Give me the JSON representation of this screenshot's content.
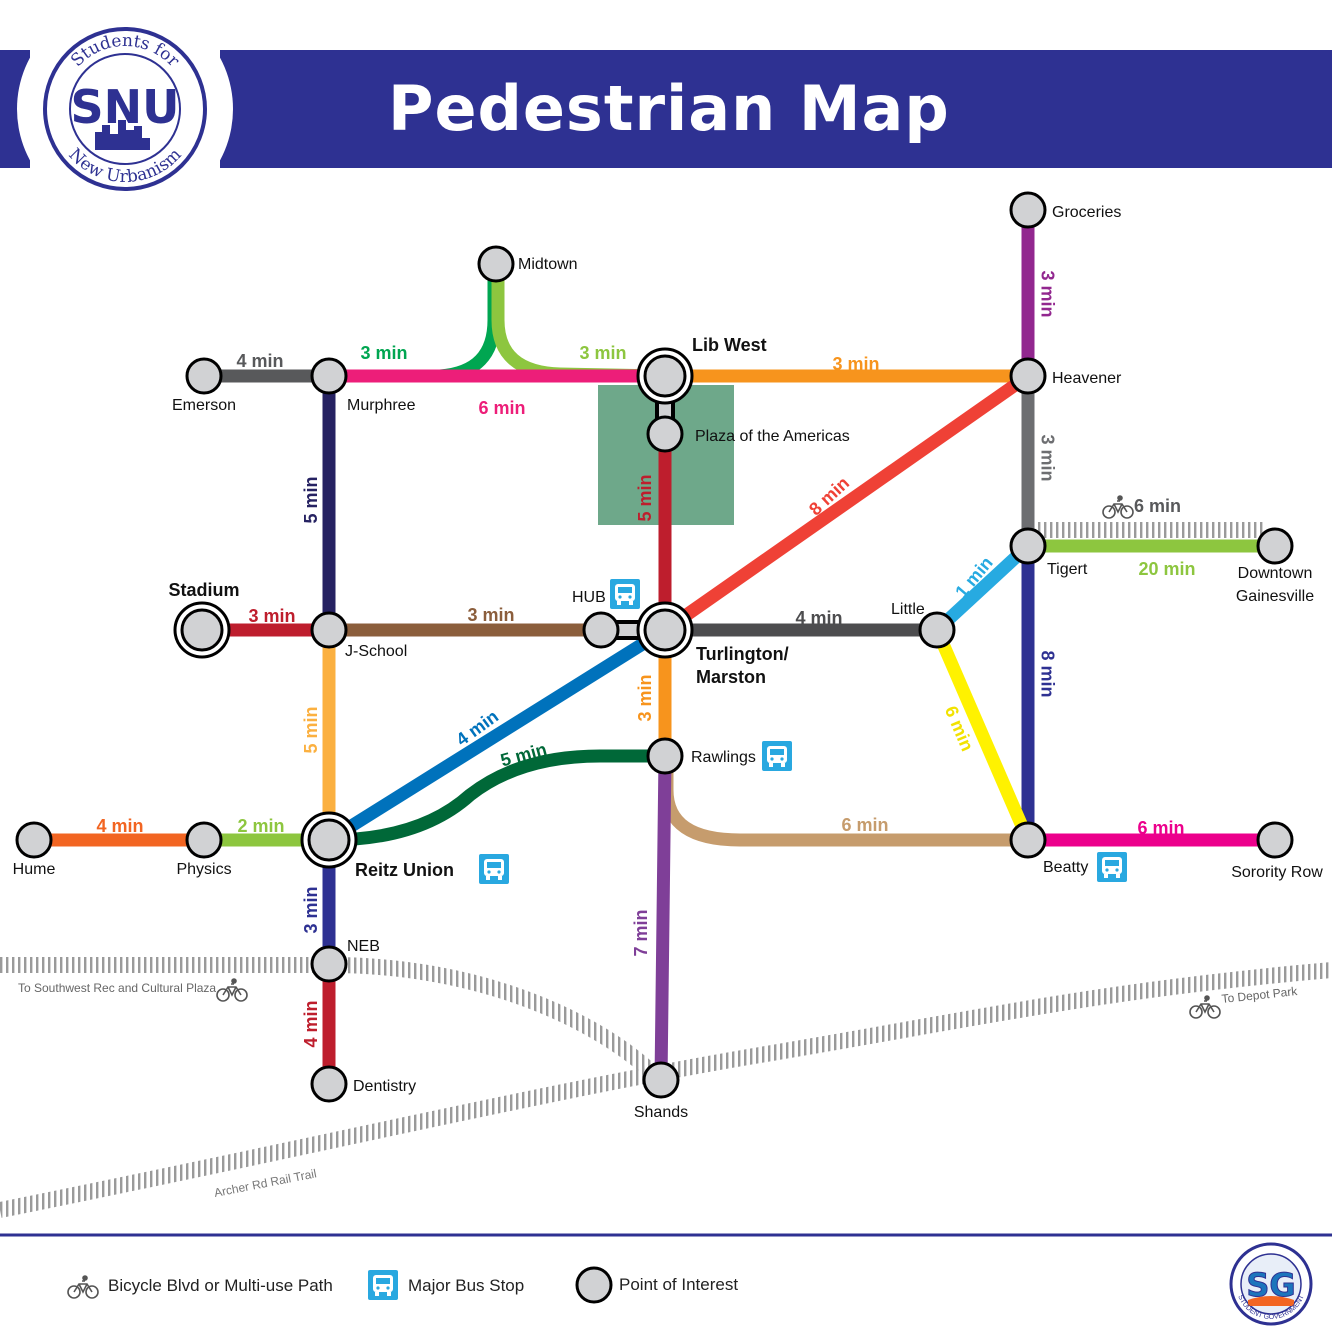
{
  "header": {
    "title": "Pedestrian Map",
    "logo": {
      "top_text": "Students for",
      "acronym": "SNU",
      "bottom_text": "New Urbanism"
    }
  },
  "colors": {
    "header_blue": "#2e3192",
    "node_fill": "#d1d2d4",
    "plaza_green": "#6ea88a",
    "rail_gray": "#9a9a9a",
    "bus_blue": "#29a8e0"
  },
  "stations": [
    {
      "id": "groceries",
      "label": "Groceries"
    },
    {
      "id": "midtown",
      "label": "Midtown"
    },
    {
      "id": "emerson",
      "label": "Emerson"
    },
    {
      "id": "murphree",
      "label": "Murphree"
    },
    {
      "id": "libwest",
      "label": "Lib West",
      "major": true
    },
    {
      "id": "heavener",
      "label": "Heavener"
    },
    {
      "id": "plaza",
      "label": "Plaza of the Americas"
    },
    {
      "id": "tigert",
      "label": "Tigert"
    },
    {
      "id": "downtown",
      "label": "Downtown Gainesville"
    },
    {
      "id": "stadium",
      "label": "Stadium",
      "major": true
    },
    {
      "id": "jschool",
      "label": "J-School"
    },
    {
      "id": "hub",
      "label": "HUB",
      "bus": true
    },
    {
      "id": "turlington",
      "label": "Turlington/ Marston",
      "major": true
    },
    {
      "id": "little",
      "label": "Little"
    },
    {
      "id": "rawlings",
      "label": "Rawlings",
      "bus": true
    },
    {
      "id": "hume",
      "label": "Hume"
    },
    {
      "id": "physics",
      "label": "Physics"
    },
    {
      "id": "reitz",
      "label": "Reitz Union",
      "major": true,
      "bus": true
    },
    {
      "id": "beatty",
      "label": "Beatty",
      "bus": true
    },
    {
      "id": "sorority",
      "label": "Sorority Row"
    },
    {
      "id": "neb",
      "label": "NEB"
    },
    {
      "id": "dentistry",
      "label": "Dentistry"
    },
    {
      "id": "shands",
      "label": "Shands"
    }
  ],
  "routes": [
    {
      "from": "emerson",
      "to": "murphree",
      "time": "4 min",
      "color": "#58595b"
    },
    {
      "from": "murphree",
      "to": "midtown",
      "time": "3 min",
      "color": "#00a651"
    },
    {
      "from": "midtown",
      "to": "libwest",
      "time": "3 min",
      "color": "#8dc63f"
    },
    {
      "from": "murphree",
      "to": "libwest",
      "time": "6 min",
      "color": "#ed1e79"
    },
    {
      "from": "libwest",
      "to": "heavener",
      "time": "3 min",
      "color": "#f7941d"
    },
    {
      "from": "groceries",
      "to": "heavener",
      "time": "3 min",
      "color": "#92278f"
    },
    {
      "from": "heavener",
      "to": "tigert",
      "time": "3 min",
      "color": "#6d6e71"
    },
    {
      "from": "murphree",
      "to": "jschool",
      "time": "5 min",
      "color": "#262262"
    },
    {
      "from": "plaza",
      "to": "turlington",
      "time": "5 min",
      "color": "#be1e2d"
    },
    {
      "from": "turlington",
      "to": "heavener",
      "time": "8 min",
      "color": "#ef4136"
    },
    {
      "from": "tigert",
      "to": "downtown",
      "time": "20 min",
      "color": "#8dc63f"
    },
    {
      "from": "stadium",
      "to": "jschool",
      "time": "3 min",
      "color": "#be1e2d"
    },
    {
      "from": "jschool",
      "to": "hub",
      "time": "3 min",
      "color": "#8b5e3c"
    },
    {
      "from": "turlington",
      "to": "little",
      "time": "4 min",
      "color": "#4d4d4f"
    },
    {
      "from": "little",
      "to": "tigert",
      "time": "1 min",
      "color": "#27aae1"
    },
    {
      "from": "tigert",
      "to": "beatty",
      "time": "8 min",
      "color": "#2e3192"
    },
    {
      "from": "little",
      "to": "beatty",
      "time": "6 min",
      "color": "#fff200"
    },
    {
      "from": "jschool",
      "to": "reitz",
      "time": "5 min",
      "color": "#fbb040"
    },
    {
      "from": "reitz",
      "to": "turlington",
      "time": "4 min",
      "color": "#0072bc"
    },
    {
      "from": "reitz",
      "to": "rawlings",
      "time": "5 min",
      "color": "#006838"
    },
    {
      "from": "turlington",
      "to": "rawlings",
      "time": "3 min",
      "color": "#f7941d"
    },
    {
      "from": "rawlings",
      "to": "beatty",
      "time": "6 min",
      "color": "#c69c6d"
    },
    {
      "from": "hume",
      "to": "physics",
      "time": "4 min",
      "color": "#f26522"
    },
    {
      "from": "physics",
      "to": "reitz",
      "time": "2 min",
      "color": "#8dc63f"
    },
    {
      "from": "beatty",
      "to": "sorority",
      "time": "6 min",
      "color": "#ec008c"
    },
    {
      "from": "reitz",
      "to": "neb",
      "time": "3 min",
      "color": "#2e3192"
    },
    {
      "from": "neb",
      "to": "dentistry",
      "time": "4 min",
      "color": "#be1e2d"
    },
    {
      "from": "rawlings",
      "to": "shands",
      "time": "7 min",
      "color": "#7f3f98"
    }
  ],
  "trails": [
    {
      "id": "archer",
      "label": "Archer Rd Rail Trail"
    },
    {
      "id": "southwest",
      "label": "To Southwest Rec and Cultural Plaza"
    },
    {
      "id": "depot",
      "label": "To Depot Park"
    },
    {
      "id": "downtown-bike",
      "label": "6 min"
    }
  ],
  "legend": [
    {
      "icon": "bicycle-icon",
      "label": "Bicycle Blvd or Multi-use Path"
    },
    {
      "icon": "bus-icon",
      "label": "Major Bus Stop"
    },
    {
      "icon": "poi-circle-icon",
      "label": "Point of Interest"
    }
  ],
  "footer_logo": {
    "letters": "SG",
    "ring_text": "STUDENT GOVERNMENT"
  }
}
